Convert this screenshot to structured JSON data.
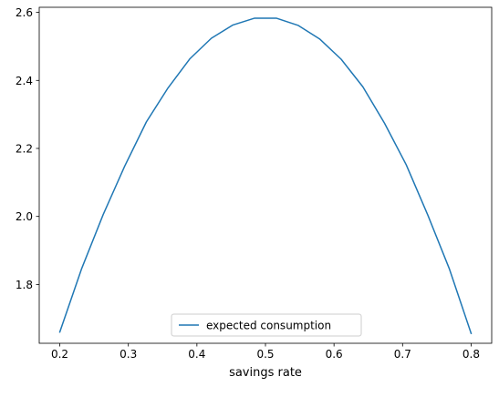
{
  "chart_data": {
    "type": "line",
    "title": "",
    "xlabel": "savings rate",
    "ylabel": "",
    "xlim": [
      0.17,
      0.83
    ],
    "ylim": [
      1.627,
      2.615
    ],
    "xticks": [
      0.2,
      0.3,
      0.4,
      0.5,
      0.6,
      0.7,
      0.8
    ],
    "xtick_labels": [
      "0.2",
      "0.3",
      "0.4",
      "0.5",
      "0.6",
      "0.7",
      "0.8"
    ],
    "yticks": [
      1.8,
      2.0,
      2.2,
      2.4,
      2.6
    ],
    "ytick_labels": [
      "1.8",
      "2.0",
      "2.2",
      "2.4",
      "2.6"
    ],
    "grid": false,
    "legend": {
      "position": "lower center",
      "entries": [
        "expected consumption"
      ]
    },
    "series": [
      {
        "name": "expected consumption",
        "color": "#1f77b4",
        "x": [
          0.2,
          0.2316,
          0.2632,
          0.2947,
          0.3263,
          0.3579,
          0.3895,
          0.4211,
          0.4526,
          0.4842,
          0.5158,
          0.5474,
          0.5789,
          0.6105,
          0.6421,
          0.6737,
          0.7053,
          0.7368,
          0.7684,
          0.8
        ],
        "y": [
          1.66,
          1.845,
          2.005,
          2.148,
          2.278,
          2.378,
          2.463,
          2.524,
          2.563,
          2.583,
          2.583,
          2.562,
          2.522,
          2.462,
          2.381,
          2.274,
          2.152,
          2.004,
          1.845,
          1.656
        ]
      }
    ]
  }
}
